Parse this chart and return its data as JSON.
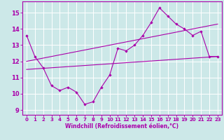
{
  "xlabel": "Windchill (Refroidissement éolien,°C)",
  "background_color": "#cce8e8",
  "line_color": "#aa00aa",
  "grid_color": "#ffffff",
  "xlim": [
    -0.5,
    23.5
  ],
  "ylim": [
    8.7,
    15.7
  ],
  "xticks": [
    0,
    1,
    2,
    3,
    4,
    5,
    6,
    7,
    8,
    9,
    10,
    11,
    12,
    13,
    14,
    15,
    16,
    17,
    18,
    19,
    20,
    21,
    22,
    23
  ],
  "yticks": [
    9,
    10,
    11,
    12,
    13,
    14,
    15
  ],
  "series1_x": [
    0,
    1,
    2,
    3,
    4,
    5,
    6,
    7,
    8,
    9,
    10,
    11,
    12,
    13,
    14,
    15,
    16,
    17,
    18,
    19,
    20,
    21,
    22,
    23
  ],
  "series1_y": [
    13.6,
    12.3,
    11.6,
    10.5,
    10.2,
    10.4,
    10.1,
    9.35,
    9.5,
    10.4,
    11.15,
    12.8,
    12.65,
    13.0,
    13.6,
    14.4,
    15.3,
    14.8,
    14.3,
    14.0,
    13.6,
    13.85,
    12.3,
    12.3
  ],
  "trend1_x": [
    0,
    23
  ],
  "trend1_y": [
    12.0,
    14.3
  ],
  "trend2_x": [
    0,
    23
  ],
  "trend2_y": [
    11.5,
    12.3
  ]
}
